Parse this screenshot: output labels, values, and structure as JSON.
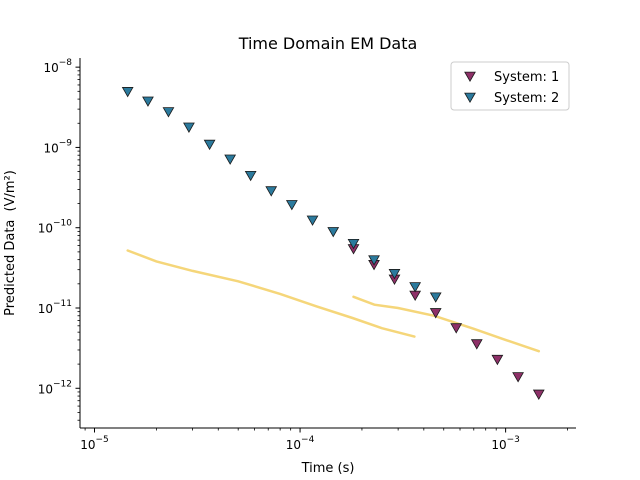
{
  "chart_data": {
    "type": "scatter",
    "title": "Time Domain EM Data",
    "xlabel": "Time (s)",
    "ylabel": "Predicted Data",
    "ylabel_unit": "(V/m²)",
    "xscale": "log",
    "yscale": "log",
    "xlim": [
      8.5e-06,
      0.0022
    ],
    "ylim": [
      3.2e-13,
      1.3e-08
    ],
    "xticks": [
      {
        "value": 1e-05,
        "base": "10",
        "exp": "−5"
      },
      {
        "value": 0.0001,
        "base": "10",
        "exp": "−4"
      },
      {
        "value": 0.001,
        "base": "10",
        "exp": "−3"
      }
    ],
    "yticks": [
      {
        "value": 1e-12,
        "base": "10",
        "exp": "−12"
      },
      {
        "value": 1e-11,
        "base": "10",
        "exp": "−11"
      },
      {
        "value": 1e-10,
        "base": "10",
        "exp": "−10"
      },
      {
        "value": 1e-09,
        "base": "10",
        "exp": "−9"
      },
      {
        "value": 1e-08,
        "base": "10",
        "exp": "−8"
      }
    ],
    "legend_position": "top-right",
    "grid": false,
    "series": [
      {
        "name": "System: 1",
        "marker": "triangle-down",
        "color": "#8e3068",
        "points": [
          [
            0.000182,
            5.5e-11
          ],
          [
            0.000229,
            3.5e-11
          ],
          [
            0.000288,
            2.3e-11
          ],
          [
            0.000363,
            1.45e-11
          ],
          [
            0.000457,
            8.8e-12
          ],
          [
            0.000575,
            5.7e-12
          ],
          [
            0.000724,
            3.6e-12
          ],
          [
            0.000912,
            2.3e-12
          ],
          [
            0.00115,
            1.4e-12
          ],
          [
            0.00145,
            8.5e-13
          ]
        ]
      },
      {
        "name": "System: 2",
        "marker": "triangle-down",
        "color": "#2b7a9d",
        "points": [
          [
            1.45e-05,
            5e-09
          ],
          [
            1.82e-05,
            3.8e-09
          ],
          [
            2.29e-05,
            2.8e-09
          ],
          [
            2.88e-05,
            1.8e-09
          ],
          [
            3.63e-05,
            1.1e-09
          ],
          [
            4.57e-05,
            7.2e-10
          ],
          [
            5.75e-05,
            4.5e-10
          ],
          [
            7.24e-05,
            2.9e-10
          ],
          [
            9.12e-05,
            1.95e-10
          ],
          [
            0.000115,
            1.25e-10
          ],
          [
            0.000145,
            9e-11
          ],
          [
            0.000182,
            6.4e-11
          ],
          [
            0.000229,
            4e-11
          ],
          [
            0.000288,
            2.7e-11
          ],
          [
            0.000363,
            1.85e-11
          ],
          [
            0.000457,
            1.38e-11
          ]
        ]
      }
    ],
    "curves": [
      {
        "color": "#f5d67a",
        "points": [
          [
            1.45e-05,
            5.2e-11
          ],
          [
            2e-05,
            3.8e-11
          ],
          [
            3e-05,
            2.9e-11
          ],
          [
            5e-05,
            2.15e-11
          ],
          [
            8e-05,
            1.5e-11
          ],
          [
            0.00012,
            1.05e-11
          ],
          [
            0.00018,
            7.5e-12
          ],
          [
            0.00025,
            5.6e-12
          ],
          [
            0.00036,
            4.4e-12
          ]
        ]
      },
      {
        "color": "#f5d67a",
        "points": [
          [
            0.000182,
            1.38e-11
          ],
          [
            0.00023,
            1.1e-11
          ],
          [
            0.0003,
            1e-11
          ],
          [
            0.00045,
            8e-12
          ],
          [
            0.0007,
            5.5e-12
          ],
          [
            0.001,
            4e-12
          ],
          [
            0.00145,
            2.9e-12
          ]
        ]
      }
    ]
  }
}
